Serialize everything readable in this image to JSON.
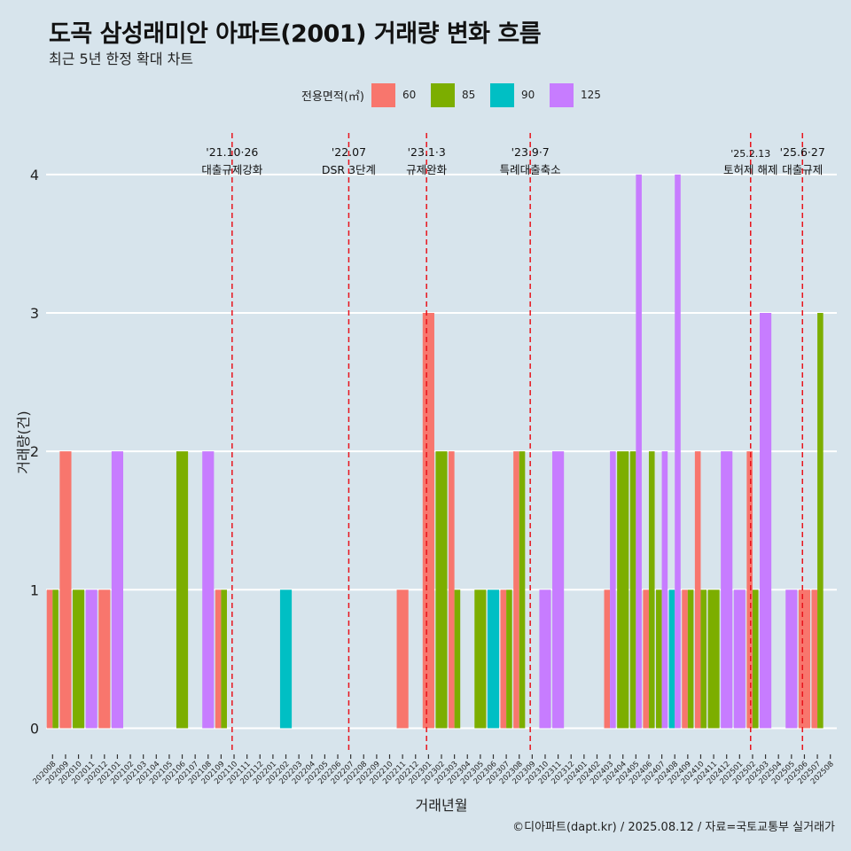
{
  "title": "도곡 삼성래미안 아파트(2001) 거래량 변화 흐름",
  "subtitle": "최근 5년 한정 확대 차트",
  "caption": "©디아파트(dapt.kr) / 2025.08.12 / 자료=국토교통부 실거래가",
  "legend": {
    "title": "전용면적(㎡)",
    "items": [
      {
        "label": "60",
        "color": "#f8766d"
      },
      {
        "label": "85",
        "color": "#7cae00"
      },
      {
        "label": "90",
        "color": "#00bfc4"
      },
      {
        "label": "125",
        "color": "#c77cff"
      }
    ]
  },
  "chart_data": {
    "type": "bar",
    "xlabel": "거래년월",
    "ylabel": "거래량(건)",
    "ylim": [
      -0.17,
      4.3
    ],
    "yticks": [
      0,
      1,
      2,
      3,
      4
    ],
    "grid": true,
    "legend_position": "top",
    "categories": [
      "202008",
      "202009",
      "202010",
      "202011",
      "202012",
      "202101",
      "202102",
      "202103",
      "202104",
      "202105",
      "202106",
      "202107",
      "202108",
      "202109",
      "202110",
      "202111",
      "202112",
      "202201",
      "202202",
      "202203",
      "202204",
      "202205",
      "202206",
      "202207",
      "202208",
      "202209",
      "202210",
      "202211",
      "202212",
      "202301",
      "202302",
      "202303",
      "202304",
      "202305",
      "202306",
      "202307",
      "202308",
      "202309",
      "202310",
      "202311",
      "202312",
      "202401",
      "202402",
      "202403",
      "202404",
      "202405",
      "202406",
      "202407",
      "202408",
      "202409",
      "202410",
      "202411",
      "202412",
      "202501",
      "202502",
      "202503",
      "202504",
      "202505",
      "202506",
      "202507",
      "202508"
    ],
    "series": [
      {
        "name": "60",
        "color": "#f8766d",
        "values": [
          1,
          2,
          0,
          0,
          1,
          0,
          0,
          0,
          0,
          0,
          0,
          0,
          0,
          1,
          0,
          0,
          0,
          0,
          0,
          0,
          0,
          0,
          0,
          0,
          0,
          0,
          0,
          1,
          0,
          3,
          0,
          2,
          0,
          0,
          0,
          1,
          2,
          0,
          0,
          0,
          0,
          0,
          0,
          1,
          0,
          0,
          1,
          0,
          0,
          1,
          2,
          0,
          0,
          0,
          2,
          0,
          0,
          0,
          1,
          1,
          0
        ]
      },
      {
        "name": "85",
        "color": "#7cae00",
        "values": [
          1,
          0,
          1,
          0,
          0,
          0,
          0,
          0,
          0,
          0,
          2,
          0,
          0,
          1,
          0,
          0,
          0,
          0,
          0,
          0,
          0,
          0,
          0,
          0,
          0,
          0,
          0,
          0,
          0,
          0,
          2,
          1,
          0,
          1,
          0,
          1,
          2,
          0,
          0,
          0,
          0,
          0,
          0,
          0,
          2,
          2,
          2,
          1,
          0,
          1,
          1,
          1,
          0,
          0,
          1,
          0,
          0,
          0,
          0,
          3,
          0
        ]
      },
      {
        "name": "90",
        "color": "#00bfc4",
        "values": [
          0,
          0,
          0,
          0,
          0,
          0,
          0,
          0,
          0,
          0,
          0,
          0,
          0,
          0,
          0,
          0,
          0,
          0,
          1,
          0,
          0,
          0,
          0,
          0,
          0,
          0,
          0,
          0,
          0,
          0,
          0,
          0,
          0,
          0,
          1,
          0,
          0,
          0,
          0,
          0,
          0,
          0,
          0,
          0,
          0,
          0,
          0,
          0,
          1,
          0,
          0,
          0,
          0,
          0,
          0,
          0,
          0,
          0,
          0,
          0,
          0
        ]
      },
      {
        "name": "125",
        "color": "#c77cff",
        "values": [
          0,
          0,
          0,
          1,
          0,
          2,
          0,
          0,
          0,
          0,
          0,
          0,
          2,
          0,
          0,
          0,
          0,
          0,
          0,
          0,
          0,
          0,
          0,
          0,
          0,
          0,
          0,
          0,
          0,
          0,
          0,
          0,
          0,
          0,
          0,
          0,
          0,
          0,
          1,
          2,
          0,
          0,
          0,
          2,
          0,
          4,
          0,
          2,
          4,
          0,
          0,
          0,
          2,
          1,
          0,
          3,
          0,
          1,
          0,
          0,
          0
        ]
      }
    ],
    "events": [
      {
        "category": "202110",
        "date": "'21.10·26",
        "label": "대출규제강화"
      },
      {
        "category": "202207",
        "date": "'22.07",
        "label": "DSR 3단계"
      },
      {
        "category": "202301",
        "date": "'23.1·3",
        "label": "규제완화"
      },
      {
        "category": "202309",
        "date": "'23.9·7",
        "label": "특례대출축소"
      },
      {
        "category": "202502",
        "date": "'25.2.13",
        "label": "토허제 해제"
      },
      {
        "category": "202506",
        "date": "'25.6·27",
        "label": "대출규제"
      }
    ]
  }
}
